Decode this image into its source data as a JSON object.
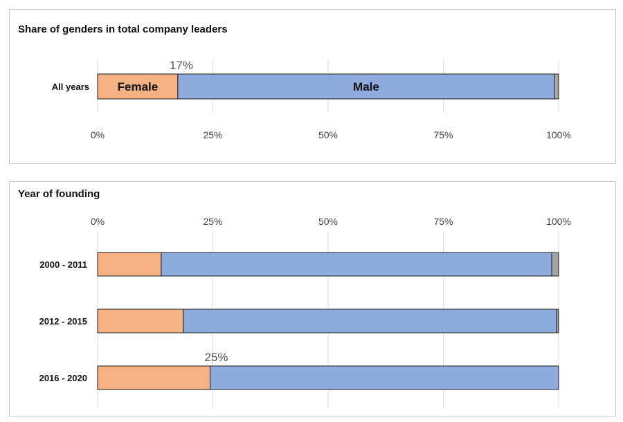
{
  "colors": {
    "female": "#F4B183",
    "male": "#8FAADC",
    "other": "#A5A5A5",
    "grid": "#D9D9D9"
  },
  "chart_data": [
    {
      "type": "bar",
      "orientation": "horizontal",
      "stacked": true,
      "normalized": true,
      "title": "Share of genders in total company leaders",
      "categories": [
        "All years"
      ],
      "series": [
        {
          "name": "Female",
          "values": [
            17.4
          ]
        },
        {
          "name": "Male",
          "values": [
            81.7
          ]
        },
        {
          "values": [
            0.9
          ]
        }
      ],
      "xlim": [
        0,
        100
      ],
      "ticks": [
        "0%",
        "25%",
        "50%",
        "75%",
        "100%"
      ],
      "axis_position": "bottom",
      "annotations": [
        {
          "text": "17%",
          "category": "All years",
          "x": 17.4
        }
      ],
      "segment_labels": [
        "Female",
        "Male"
      ],
      "grid": true
    },
    {
      "type": "bar",
      "orientation": "horizontal",
      "stacked": true,
      "normalized": true,
      "title": "Year of founding",
      "categories": [
        "2000 - 2011",
        "2012 - 2015",
        "2016 - 2020"
      ],
      "series": [
        {
          "name": "Female",
          "values": [
            13.8,
            18.6,
            24.4
          ]
        },
        {
          "name": "Male",
          "values": [
            84.7,
            81.0,
            75.6
          ]
        },
        {
          "values": [
            1.5,
            0.4,
            0.0
          ]
        }
      ],
      "xlim": [
        0,
        100
      ],
      "ticks": [
        "0%",
        "25%",
        "50%",
        "75%",
        "100%"
      ],
      "axis_position": "top",
      "annotations": [
        {
          "text": "25%",
          "category": "2016 - 2020",
          "x": 25
        }
      ],
      "grid": true
    }
  ]
}
